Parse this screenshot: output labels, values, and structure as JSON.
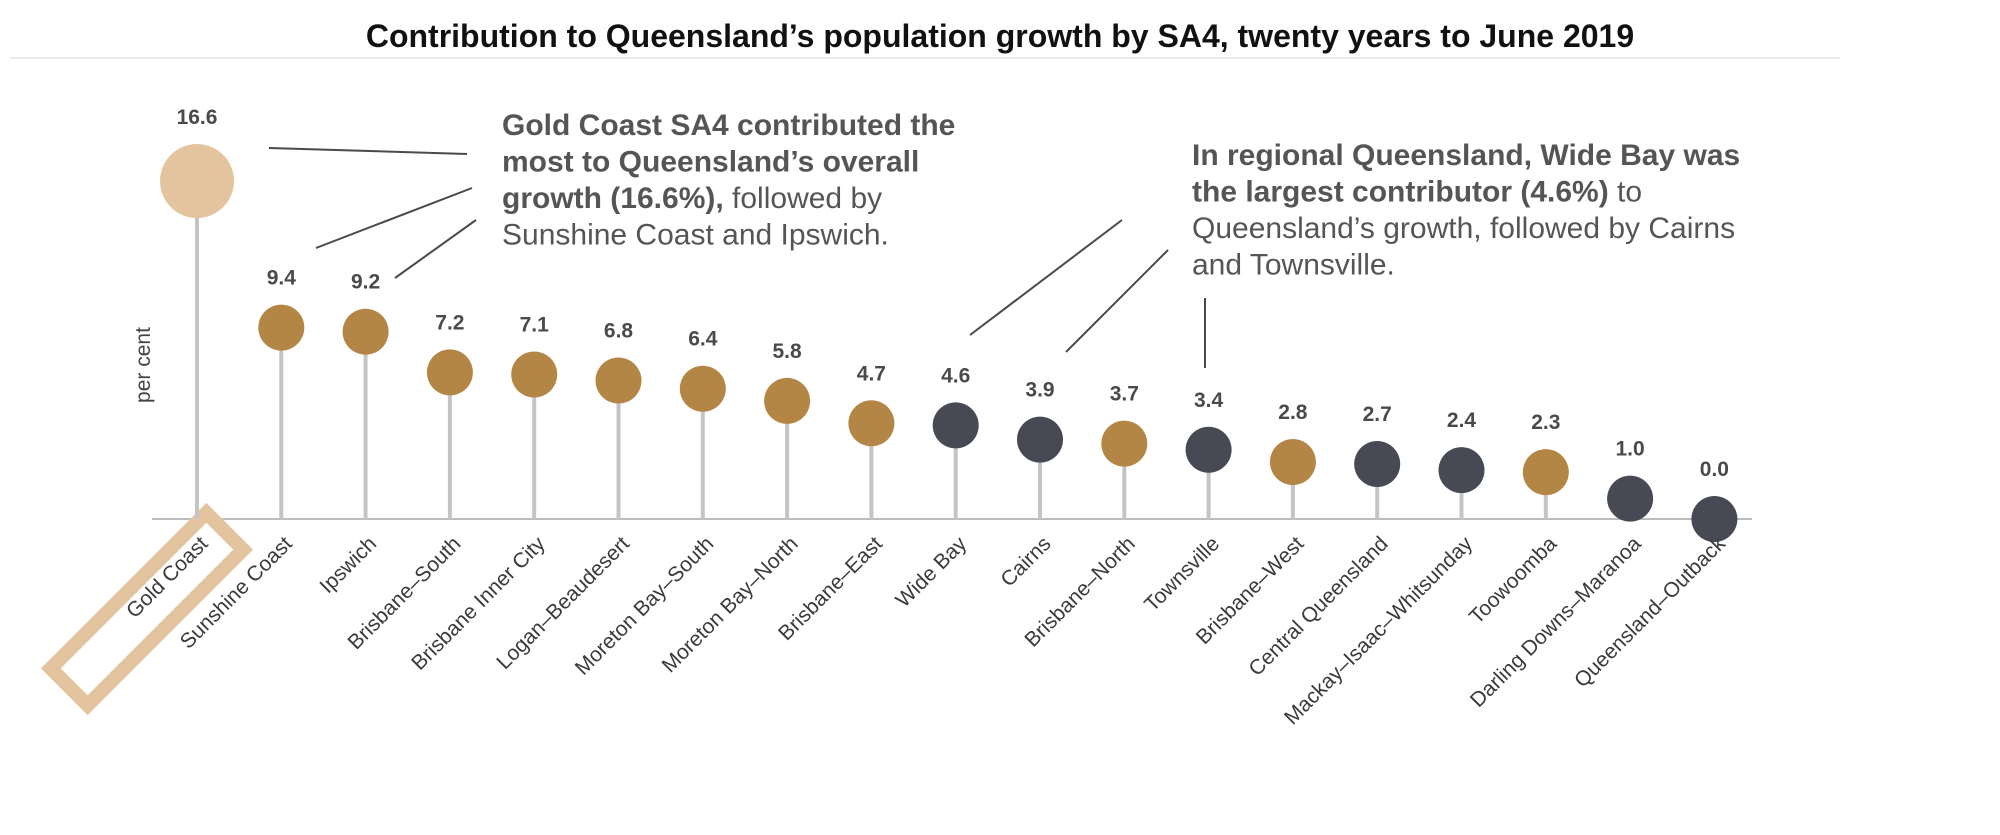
{
  "chart_data": {
    "type": "lollipop",
    "title": "Contribution to Queensland’s population growth by SA4, twenty years to June 2019",
    "ylabel": "per cent",
    "xlabel": "",
    "ylim": [
      0,
      17
    ],
    "grid": false,
    "categories": [
      "Gold Coast",
      "Sunshine Coast",
      "Ipswich",
      "Brisbane–South",
      "Brisbane Inner City",
      "Logan–Beaudesert",
      "Moreton Bay–South",
      "Moreton Bay–North",
      "Brisbane–East",
      "Wide Bay",
      "Cairns",
      "Brisbane–North",
      "Townsville",
      "Brisbane–West",
      "Central Queensland",
      "Mackay–Isaac–Whitsunday",
      "Toowoomba",
      "Darling Downs–Maranoa",
      "Queensland–Outback"
    ],
    "values": [
      16.6,
      9.4,
      9.2,
      7.2,
      7.1,
      6.8,
      6.4,
      5.8,
      4.7,
      4.6,
      3.9,
      3.7,
      3.4,
      2.8,
      2.7,
      2.4,
      2.3,
      1.0,
      0.0
    ],
    "value_labels": [
      "16.6",
      "9.4",
      "9.2",
      "7.2",
      "7.1",
      "6.8",
      "6.4",
      "5.8",
      "4.7",
      "4.6",
      "3.9",
      "3.7",
      "3.4",
      "2.8",
      "2.7",
      "2.4",
      "2.3",
      "1.0",
      "0.0"
    ],
    "groups": [
      "highlight",
      "south-east",
      "south-east",
      "south-east",
      "south-east",
      "south-east",
      "south-east",
      "south-east",
      "south-east",
      "regional",
      "regional",
      "south-east",
      "regional",
      "south-east",
      "regional",
      "regional",
      "south-east",
      "regional",
      "regional"
    ],
    "highlight_category": "Gold Coast",
    "colors": {
      "highlight": "#e3c49e",
      "south-east": "#b48645",
      "regional": "#474a54",
      "stem": "#c4c4c4",
      "axis": "#bdbdbd",
      "highlight_box": "#e3c49e",
      "leader": "#4a4a4a"
    },
    "annotations": [
      {
        "lines": [
          [
            {
              "text": "Gold Coast SA4 contributed the",
              "bold": true
            }
          ],
          [
            {
              "text": "most to Queensland’s overall",
              "bold": true
            }
          ],
          [
            {
              "text": "growth (16.6%),",
              "bold": true
            },
            {
              "text": " followed by",
              "bold": false
            }
          ],
          [
            {
              "text": "Sunshine Coast and Ipswich.",
              "bold": false
            }
          ]
        ]
      },
      {
        "lines": [
          [
            {
              "text": "In regional Queensland, Wide Bay was",
              "bold": true
            }
          ],
          [
            {
              "text": "the largest contributor (4.6%)",
              "bold": true
            },
            {
              "text": " to",
              "bold": false
            }
          ],
          [
            {
              "text": "Queensland’s growth, followed by Cairns",
              "bold": false
            }
          ],
          [
            {
              "text": "and Townsville.",
              "bold": false
            }
          ]
        ]
      }
    ]
  }
}
